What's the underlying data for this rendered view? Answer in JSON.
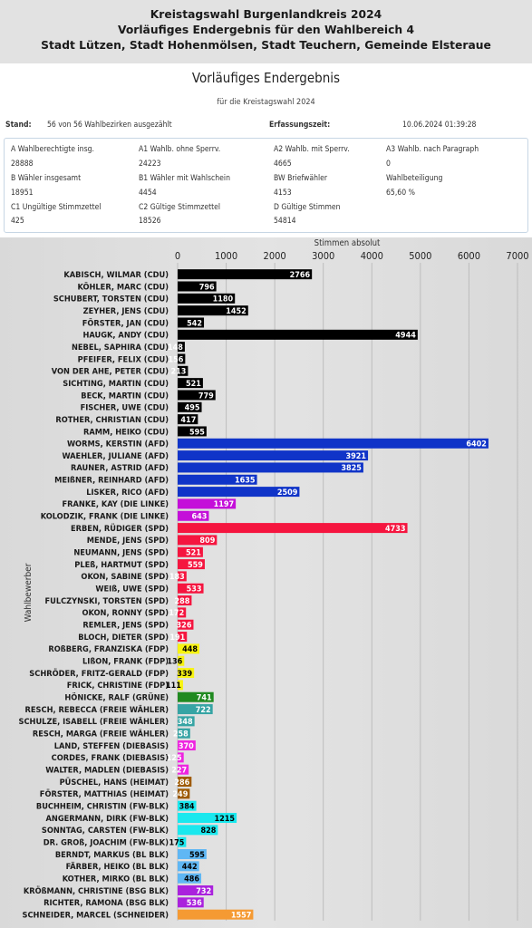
{
  "header": {
    "line1": "Kreistagswahl Burgenlandkreis 2024",
    "line2": "Vorläufiges Endergebnis für den Wahlbereich 4",
    "line3": "Stadt Lützen, Stadt Hohenmölsen, Stadt Teuchern, Gemeinde Elsteraue"
  },
  "panel": {
    "title": "Vorläufiges Endergebnis",
    "subtitle": "für die Kreistagswahl 2024",
    "stand_label": "Stand:",
    "stand_value": "56 von 56 Wahlbezirken ausgezählt",
    "erfassung_label": "Erfassungszeit:",
    "erfassung_value": "10.06.2024 01:39:28",
    "stats": [
      {
        "label": "A Wahlberechtigte insg.",
        "value": "28888"
      },
      {
        "label": "A1 Wahlb. ohne Sperrv.",
        "value": "24223"
      },
      {
        "label": "A2 Wahlb. mit Sperrv.",
        "value": "4665"
      },
      {
        "label": "A3 Wahlb. nach Paragraph",
        "value": "0"
      },
      {
        "label": "B Wähler insgesamt",
        "value": "18951"
      },
      {
        "label": "B1 Wähler mit Wahlschein",
        "value": "4454"
      },
      {
        "label": "BW Briefwähler",
        "value": "4153"
      },
      {
        "label": "Wahlbeteiligung",
        "value": "65,60 %"
      },
      {
        "label": "C1 Ungültige Stimmzettel",
        "value": "425"
      },
      {
        "label": "C2 Gültige Stimmzettel",
        "value": "18526"
      },
      {
        "label": "D Gültige Stimmen",
        "value": "54814"
      }
    ]
  },
  "chart_data": {
    "type": "bar",
    "orientation": "horizontal",
    "xlabel": "Stimmen absolut",
    "ylabel": "Wahlbewerber",
    "xlim": [
      0,
      7000
    ],
    "xticks": [
      "0",
      "1000",
      "2000",
      "3000",
      "4000",
      "5000",
      "6000",
      "7000"
    ],
    "grid": true,
    "categories": [
      "KABISCH, WILMAR (CDU)",
      "KÖHLER, MARC (CDU)",
      "SCHUBERT, TORSTEN (CDU)",
      "ZEYHER, JENS (CDU)",
      "FÖRSTER, JAN (CDU)",
      "HAUGK, ANDY (CDU)",
      "NEBEL, SAPHIRA (CDU)",
      "PFEIFER, FELIX (CDU)",
      "VON DER AHE, PETER (CDU)",
      "SICHTING, MARTIN (CDU)",
      "BECK, MARTIN (CDU)",
      "FISCHER, UWE (CDU)",
      "ROTHER, CHRISTIAN (CDU)",
      "RAMM, HEIKO (CDU)",
      "WORMS, KERSTIN (AFD)",
      "WAEHLER, JULIANE (AFD)",
      "RAUNER, ASTRID (AFD)",
      "MEIßNER, REINHARD (AFD)",
      "LISKER, RICO (AFD)",
      "FRANKE, KAY (DIE LINKE)",
      "KOLODZIK, FRANK (DIE LINKE)",
      "ERBEN, RÜDIGER (SPD)",
      "MENDE, JENS (SPD)",
      "NEUMANN, JENS (SPD)",
      "PLEß, HARTMUT (SPD)",
      "OKON, SABINE (SPD)",
      "WEIß, UWE (SPD)",
      "FULCZYNSKI, TORSTEN (SPD)",
      "OKON, RONNY (SPD)",
      "REMLER, JENS (SPD)",
      "BLOCH, DIETER (SPD)",
      "ROßBERG, FRANZISKA (FDP)",
      "LIßON, FRANK (FDP)",
      "SCHRÖDER, FRITZ-GERALD (FDP)",
      "FRICK, CHRISTINE (FDP)",
      "HÖNICKE, RALF (GRÜNE)",
      "RESCH, REBECCA (FREIE WÄHLER)",
      "SCHULZE, ISABELL (FREIE WÄHLER)",
      "RESCH, MARGA (FREIE WÄHLER)",
      "LAND, STEFFEN (DIEBASIS)",
      "CORDES, FRANK (DIEBASIS)",
      "WALTER, MADLEN (DIEBASIS)",
      "PÜSCHEL, HANS (HEIMAT)",
      "FÖRSTER, MATTHIAS (HEIMAT)",
      "BUCHHEIM, CHRISTIN (FW-BLK)",
      "ANGERMANN, DIRK (FW-BLK)",
      "SONNTAG, CARSTEN (FW-BLK)",
      "DR. GROß, JOACHIM (FW-BLK)",
      "BERNDT, MARKUS (BL BLK)",
      "FÄRBER, HEIKO (BL BLK)",
      "KOTHER, MIRKO (BL BLK)",
      "KRÖßMANN, CHRISTINE (BSG BLK)",
      "RICHTER, RAMONA (BSG BLK)",
      "SCHNEIDER, MARCEL (SCHNEIDER)"
    ],
    "values": [
      2766,
      796,
      1180,
      1452,
      542,
      4944,
      148,
      156,
      213,
      521,
      779,
      495,
      417,
      595,
      6402,
      3921,
      3825,
      1635,
      2509,
      1197,
      643,
      4733,
      809,
      521,
      559,
      183,
      533,
      288,
      172,
      326,
      191,
      448,
      136,
      339,
      111,
      741,
      722,
      348,
      258,
      370,
      125,
      227,
      286,
      249,
      384,
      1215,
      828,
      175,
      595,
      442,
      486,
      732,
      536,
      1557
    ],
    "colors": [
      "#000000",
      "#000000",
      "#000000",
      "#000000",
      "#000000",
      "#000000",
      "#000000",
      "#000000",
      "#000000",
      "#000000",
      "#000000",
      "#000000",
      "#000000",
      "#000000",
      "#1034c8",
      "#1034c8",
      "#1034c8",
      "#1034c8",
      "#1034c8",
      "#c40fd9",
      "#c40fd9",
      "#f5153f",
      "#f5153f",
      "#f5153f",
      "#f5153f",
      "#f5153f",
      "#f5153f",
      "#f5153f",
      "#f5153f",
      "#f5153f",
      "#f5153f",
      "#f7f312",
      "#f7f312",
      "#f7f312",
      "#f7f312",
      "#208a20",
      "#36a4a4",
      "#36a4a4",
      "#36a4a4",
      "#ee25e0",
      "#ee25e0",
      "#ee25e0",
      "#9e5a00",
      "#9e5a00",
      "#1ae8ee",
      "#1ae8ee",
      "#1ae8ee",
      "#1ae8ee",
      "#5fb7f4",
      "#5fb7f4",
      "#5fb7f4",
      "#aa22dd",
      "#aa22dd",
      "#f59a33"
    ],
    "label_colors": [
      "#ffffff",
      "#ffffff",
      "#ffffff",
      "#ffffff",
      "#ffffff",
      "#ffffff",
      "#ffffff",
      "#ffffff",
      "#ffffff",
      "#ffffff",
      "#ffffff",
      "#ffffff",
      "#ffffff",
      "#ffffff",
      "#ffffff",
      "#ffffff",
      "#ffffff",
      "#ffffff",
      "#ffffff",
      "#ffffff",
      "#ffffff",
      "#ffffff",
      "#ffffff",
      "#ffffff",
      "#ffffff",
      "#ffffff",
      "#ffffff",
      "#ffffff",
      "#ffffff",
      "#ffffff",
      "#ffffff",
      "#000000",
      "#000000",
      "#000000",
      "#000000",
      "#ffffff",
      "#ffffff",
      "#ffffff",
      "#ffffff",
      "#ffffff",
      "#ffffff",
      "#ffffff",
      "#ffffff",
      "#ffffff",
      "#000000",
      "#000000",
      "#000000",
      "#000000",
      "#000000",
      "#000000",
      "#000000",
      "#ffffff",
      "#ffffff",
      "#ffffff"
    ]
  }
}
